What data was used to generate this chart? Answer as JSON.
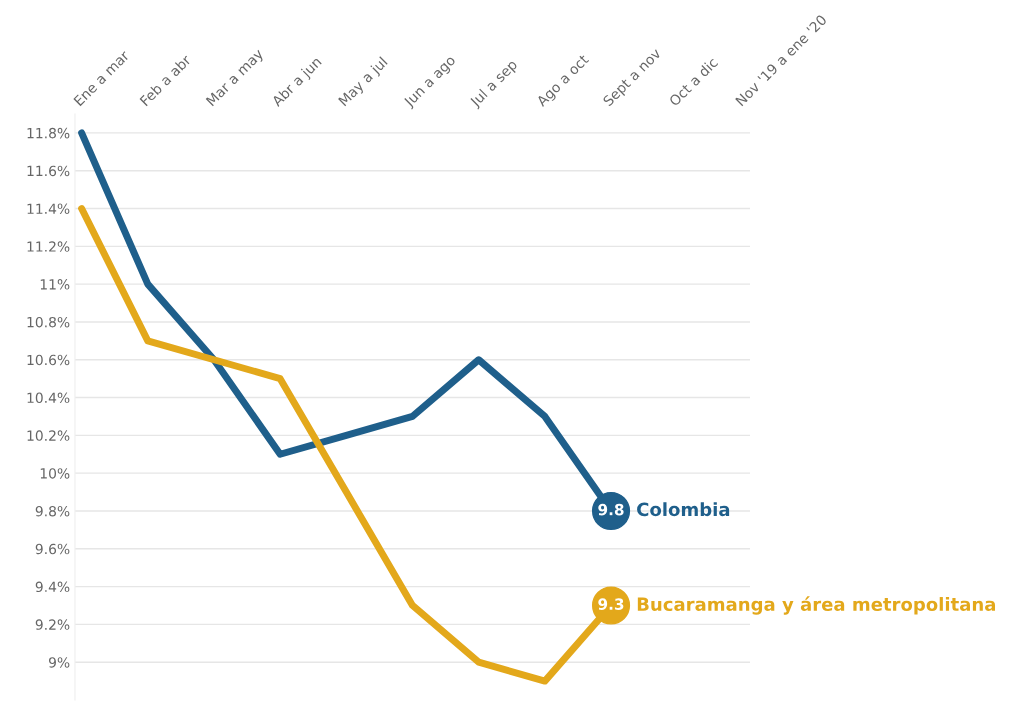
{
  "chart_data": {
    "type": "line",
    "categories": [
      "Ene a mar",
      "Feb a abr",
      "Mar a may",
      "Abr a jun",
      "May a jul",
      "Jun a ago",
      "Jul a sep",
      "Ago a oct",
      "Sept a nov",
      "Oct a dic",
      "Nov '19 a ene '20"
    ],
    "series": [
      {
        "name": "Colombia",
        "color": "#1f5f8b",
        "values": [
          11.8,
          11.0,
          10.6,
          10.1,
          10.2,
          10.3,
          10.6,
          10.3,
          9.8,
          null,
          null
        ],
        "value_labels": [
          null,
          null,
          null,
          null,
          null,
          null,
          null,
          null,
          "9.8",
          null,
          null
        ]
      },
      {
        "name": "Bucaramanga y área metropolitana",
        "color": "#e3a81b",
        "values": [
          11.4,
          10.7,
          10.6,
          10.5,
          9.9,
          9.3,
          9.0,
          8.9,
          9.3,
          null,
          null
        ],
        "value_labels": [
          null,
          null,
          null,
          null,
          null,
          null,
          null,
          null,
          "9.3",
          null,
          null
        ]
      }
    ],
    "ylim": [
      8.8,
      11.9
    ],
    "yticks": [
      {
        "value": 9,
        "label": "9%"
      },
      {
        "value": 9.2,
        "label": "9.2%"
      },
      {
        "value": 9.4,
        "label": "9.4%"
      },
      {
        "value": 9.6,
        "label": "9.6%"
      },
      {
        "value": 9.8,
        "label": "9.8%"
      },
      {
        "value": 10,
        "label": "10%"
      },
      {
        "value": 10.2,
        "label": "10.2%"
      },
      {
        "value": 10.4,
        "label": "10.4%"
      },
      {
        "value": 10.6,
        "label": "10.6%"
      },
      {
        "value": 10.8,
        "label": "10.8%"
      },
      {
        "value": 11,
        "label": "11%"
      },
      {
        "value": 11.2,
        "label": "11.2%"
      },
      {
        "value": 11.4,
        "label": "11.4%"
      },
      {
        "value": 11.6,
        "label": "11.6%"
      },
      {
        "value": 11.8,
        "label": "11.8%"
      }
    ],
    "grid": "y",
    "legend": false,
    "line_style": "solid"
  }
}
